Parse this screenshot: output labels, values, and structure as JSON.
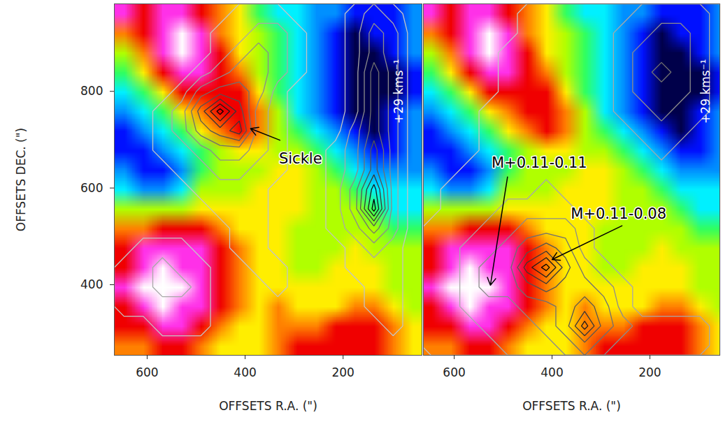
{
  "chart_data": {
    "type": "heatmap",
    "x_label": "OFFSETS R.A. (\")",
    "y_label": "OFFSETS DEC. (\")",
    "image": {
      "x_range": [
        667,
        39
      ],
      "y_range": [
        981,
        254
      ],
      "clim": [
        0,
        10
      ],
      "values": [
        [
          9,
          8,
          9,
          9,
          8,
          7,
          6,
          4,
          3,
          3,
          2,
          2,
          1,
          1,
          1,
          2
        ],
        [
          7,
          8,
          9,
          10,
          9,
          7,
          6,
          5,
          4,
          3,
          2,
          1,
          0,
          1,
          1,
          2
        ],
        [
          5,
          7,
          9,
          10,
          9,
          8,
          6,
          5,
          4,
          3,
          2,
          1,
          0,
          0,
          1,
          2
        ],
        [
          4,
          6,
          8,
          9,
          9,
          8,
          7,
          5,
          4,
          3,
          2,
          1,
          0,
          0,
          0,
          1
        ],
        [
          3,
          4,
          6,
          8,
          8,
          8,
          8,
          6,
          4,
          3,
          2,
          1,
          0,
          0,
          0,
          1
        ],
        [
          2,
          3,
          4,
          6,
          7,
          8,
          8,
          7,
          5,
          3,
          2,
          1,
          0,
          0,
          1,
          2
        ],
        [
          1,
          2,
          3,
          4,
          6,
          7,
          8,
          7,
          5,
          4,
          3,
          2,
          1,
          0,
          1,
          2
        ],
        [
          1,
          1,
          2,
          3,
          4,
          5,
          6,
          6,
          5,
          5,
          4,
          3,
          2,
          1,
          1,
          2
        ],
        [
          2,
          1,
          1,
          2,
          4,
          5,
          5,
          5,
          6,
          6,
          5,
          4,
          3,
          2,
          2,
          2
        ],
        [
          3,
          2,
          2,
          3,
          5,
          5,
          5,
          6,
          6,
          6,
          5,
          5,
          4,
          3,
          3,
          3
        ],
        [
          5,
          5,
          5,
          5,
          6,
          6,
          6,
          6,
          6,
          6,
          5,
          5,
          5,
          4,
          3,
          3
        ],
        [
          7,
          7,
          8,
          8,
          8,
          7,
          6,
          6,
          6,
          5,
          5,
          5,
          5,
          5,
          4,
          4
        ],
        [
          8,
          9,
          9,
          9,
          9,
          8,
          7,
          6,
          6,
          5,
          5,
          5,
          6,
          5,
          5,
          5
        ],
        [
          8,
          9,
          10,
          9,
          9,
          8,
          7,
          6,
          6,
          5,
          5,
          6,
          6,
          6,
          5,
          5
        ],
        [
          9,
          10,
          10,
          10,
          9,
          8,
          7,
          6,
          6,
          6,
          6,
          6,
          6,
          6,
          5,
          5
        ],
        [
          8,
          9,
          10,
          9,
          9,
          8,
          7,
          6,
          7,
          6,
          6,
          6,
          7,
          7,
          6,
          5
        ],
        [
          8,
          8,
          9,
          9,
          8,
          7,
          6,
          6,
          7,
          7,
          7,
          8,
          8,
          8,
          7,
          6
        ],
        [
          7,
          7,
          8,
          8,
          7,
          6,
          6,
          6,
          7,
          8,
          8,
          8,
          8,
          8,
          7,
          6
        ]
      ]
    },
    "panels": [
      {
        "xlim": [
          667,
          39
        ],
        "ylim": [
          254,
          981
        ],
        "xticks": [
          600,
          400,
          200
        ],
        "yticks": [
          400,
          600,
          800
        ],
        "velocity_label": {
          "text": "+29 kms⁻¹",
          "x": 86,
          "y": 800
        },
        "annotations": [
          {
            "text": "Sickle",
            "x": 287,
            "y": 661,
            "arrow_from": [
              329,
              699
            ],
            "arrow_to": [
              389,
              723
            ]
          }
        ],
        "contours": {
          "levels": [
            1.5,
            2.5,
            3.5,
            4.5,
            5.5,
            6.5,
            7.5,
            8.5
          ],
          "values": [
            [
              0,
              0,
              0,
              0,
              1,
              1,
              2,
              2,
              2,
              1,
              1,
              1,
              2,
              3,
              2,
              1
            ],
            [
              0,
              0,
              0,
              0,
              1,
              2,
              2,
              3,
              3,
              2,
              1,
              1,
              2,
              4,
              3,
              1
            ],
            [
              0,
              0,
              0,
              1,
              1,
              2,
              3,
              4,
              3,
              2,
              1,
              1,
              2,
              4,
              3,
              1
            ],
            [
              0,
              0,
              1,
              1,
              2,
              3,
              4,
              4,
              3,
              2,
              1,
              1,
              2,
              5,
              3,
              1
            ],
            [
              0,
              1,
              1,
              2,
              4,
              5,
              5,
              4,
              2,
              1,
              1,
              1,
              2,
              5,
              3,
              1
            ],
            [
              1,
              1,
              2,
              3,
              6,
              9,
              6,
              3,
              2,
              1,
              1,
              1,
              2,
              5,
              3,
              1
            ],
            [
              1,
              1,
              2,
              3,
              5,
              6,
              7,
              3,
              2,
              1,
              1,
              1,
              3,
              5,
              3,
              1
            ],
            [
              1,
              1,
              2,
              2,
              3,
              4,
              4,
              3,
              2,
              1,
              1,
              2,
              3,
              6,
              3,
              1
            ],
            [
              1,
              1,
              1,
              2,
              2,
              3,
              3,
              2,
              2,
              1,
              1,
              2,
              3,
              6,
              3,
              1
            ],
            [
              1,
              1,
              1,
              1,
              2,
              2,
              2,
              2,
              1,
              1,
              1,
              2,
              4,
              8,
              3,
              1
            ],
            [
              1,
              1,
              1,
              1,
              1,
              2,
              2,
              2,
              1,
              1,
              1,
              2,
              4,
              9,
              3,
              1
            ],
            [
              1,
              1,
              1,
              1,
              1,
              1,
              2,
              2,
              1,
              1,
              1,
              2,
              3,
              5,
              3,
              1
            ],
            [
              1,
              2,
              2,
              2,
              1,
              1,
              2,
              2,
              1,
              1,
              1,
              1,
              2,
              3,
              2,
              1
            ],
            [
              2,
              2,
              3,
              2,
              2,
              1,
              1,
              2,
              2,
              1,
              1,
              1,
              2,
              2,
              2,
              1
            ],
            [
              2,
              2,
              3,
              3,
              2,
              1,
              1,
              1,
              2,
              1,
              1,
              1,
              1,
              2,
              2,
              1
            ],
            [
              2,
              2,
              2,
              2,
              2,
              1,
              1,
              1,
              1,
              1,
              1,
              1,
              1,
              2,
              2,
              1
            ],
            [
              1,
              1,
              2,
              2,
              2,
              1,
              1,
              1,
              1,
              1,
              1,
              1,
              1,
              1,
              2,
              1
            ],
            [
              1,
              1,
              1,
              1,
              1,
              1,
              1,
              1,
              1,
              1,
              1,
              1,
              1,
              1,
              1,
              1
            ]
          ]
        }
      },
      {
        "xlim": [
          663,
          57
        ],
        "ylim": [
          254,
          981
        ],
        "xticks": [
          600,
          400,
          200
        ],
        "tick_labels": "x",
        "velocity_label": {
          "text": "+29 kms⁻¹",
          "x": 86,
          "y": 800
        },
        "annotations": [
          {
            "text": "M+0.11-0.11",
            "x": 426,
            "y": 652,
            "arrow_from": [
              491,
              623
            ],
            "arrow_to": [
              526,
              399
            ]
          },
          {
            "text": "M+0.11-0.08",
            "x": 264,
            "y": 546,
            "arrow_from": [
              257,
              522
            ],
            "arrow_to": [
              400,
              452
            ]
          }
        ],
        "contours": {
          "levels": [
            1.5,
            2.5,
            3.5,
            4.5,
            5.5,
            6.5,
            7.5,
            8.5
          ],
          "values": [
            [
              1,
              1,
              1,
              1,
              1,
              2,
              2,
              2,
              2,
              2,
              2,
              3,
              3,
              3,
              3,
              2
            ],
            [
              1,
              1,
              1,
              1,
              1,
              2,
              2,
              2,
              2,
              2,
              3,
              3,
              4,
              4,
              3,
              2
            ],
            [
              1,
              1,
              1,
              1,
              2,
              2,
              2,
              2,
              2,
              2,
              3,
              4,
              4,
              4,
              3,
              2
            ],
            [
              1,
              1,
              1,
              1,
              2,
              2,
              2,
              2,
              2,
              2,
              3,
              4,
              5,
              4,
              3,
              2
            ],
            [
              1,
              1,
              1,
              1,
              2,
              2,
              2,
              2,
              2,
              2,
              3,
              4,
              4,
              4,
              3,
              2
            ],
            [
              1,
              1,
              1,
              2,
              2,
              2,
              2,
              2,
              2,
              2,
              3,
              3,
              4,
              3,
              3,
              2
            ],
            [
              1,
              1,
              1,
              2,
              2,
              2,
              2,
              2,
              2,
              2,
              2,
              3,
              3,
              3,
              2,
              2
            ],
            [
              1,
              1,
              1,
              2,
              2,
              2,
              2,
              2,
              2,
              2,
              2,
              2,
              3,
              2,
              2,
              2
            ],
            [
              1,
              1,
              2,
              2,
              2,
              2,
              2,
              2,
              2,
              2,
              2,
              2,
              2,
              2,
              2,
              2
            ],
            [
              1,
              2,
              2,
              2,
              2,
              2,
              3,
              2,
              2,
              2,
              2,
              2,
              2,
              2,
              2,
              2
            ],
            [
              1,
              2,
              2,
              2,
              3,
              3,
              3,
              3,
              2,
              2,
              2,
              2,
              2,
              2,
              2,
              2
            ],
            [
              2,
              2,
              2,
              3,
              3,
              4,
              4,
              4,
              3,
              2,
              2,
              2,
              2,
              2,
              2,
              2
            ],
            [
              2,
              2,
              3,
              3,
              4,
              5,
              6,
              5,
              3,
              2,
              2,
              2,
              2,
              2,
              2,
              2
            ],
            [
              2,
              2,
              3,
              4,
              4,
              7,
              9,
              6,
              4,
              3,
              2,
              2,
              2,
              2,
              2,
              2
            ],
            [
              2,
              2,
              3,
              4,
              4,
              5,
              6,
              5,
              5,
              4,
              3,
              2,
              2,
              2,
              2,
              2
            ],
            [
              2,
              2,
              3,
              3,
              3,
              4,
              4,
              5,
              6,
              5,
              3,
              2,
              2,
              2,
              2,
              2
            ],
            [
              2,
              2,
              2,
              3,
              3,
              3,
              4,
              5,
              8,
              5,
              4,
              3,
              3,
              3,
              3,
              2
            ],
            [
              2,
              2,
              2,
              2,
              3,
              3,
              3,
              4,
              5,
              4,
              3,
              3,
              3,
              3,
              3,
              2
            ]
          ]
        }
      }
    ]
  }
}
